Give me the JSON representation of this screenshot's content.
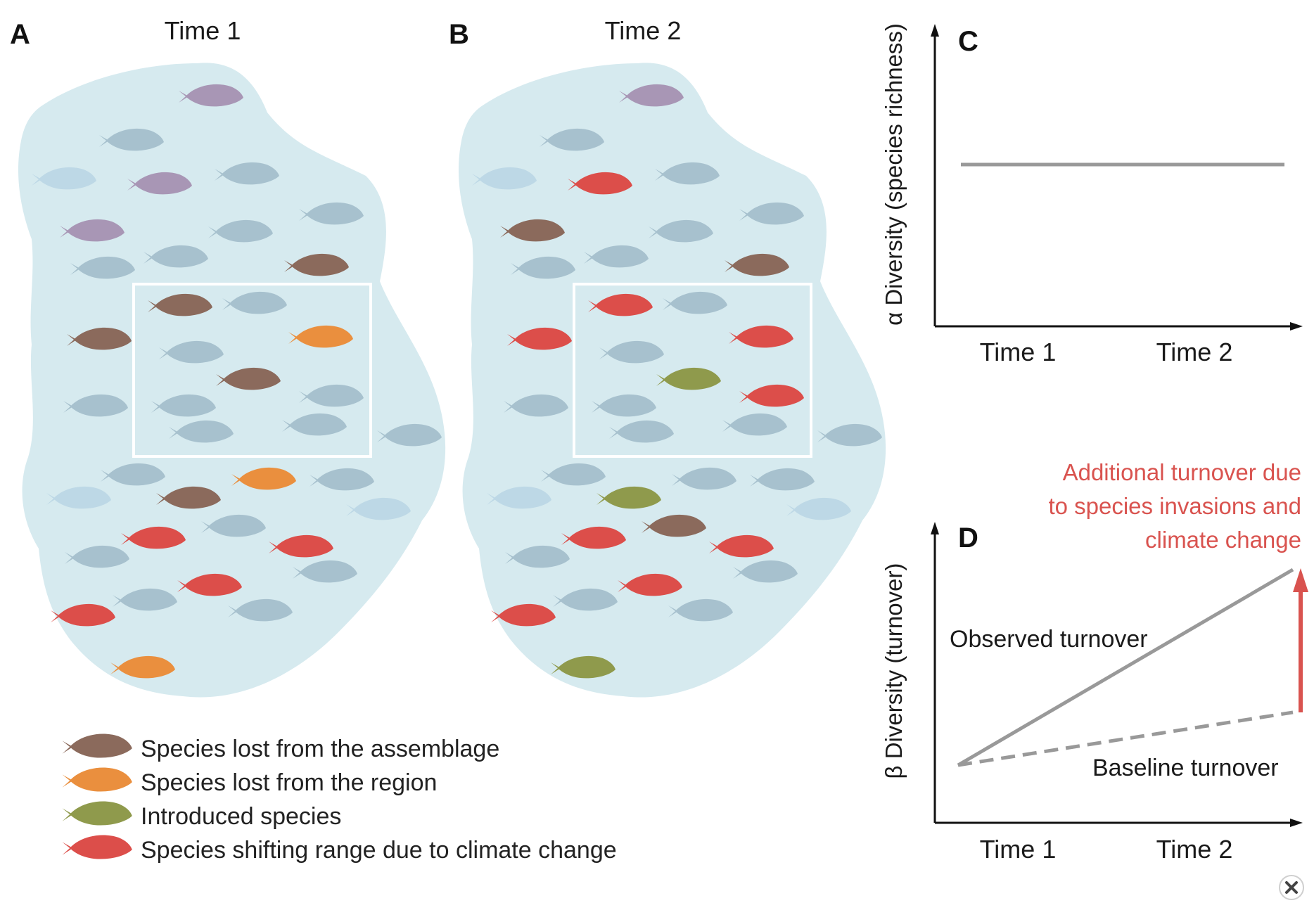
{
  "panels": {
    "a": {
      "letter": "A",
      "title": "Time 1"
    },
    "b": {
      "letter": "B",
      "title": "Time 2"
    },
    "c": {
      "letter": "C",
      "ylabel": "α Diversity (species richness)",
      "xticks": [
        "Time 1",
        "Time 2"
      ]
    },
    "d": {
      "letter": "D",
      "ylabel": "β Diversity (turnover)",
      "xticks": [
        "Time 1",
        "Time 2"
      ],
      "observed_label": "Observed turnover",
      "baseline_label": "Baseline turnover",
      "annotation": [
        "Additional turnover due",
        "to species invasions and",
        "climate change"
      ]
    }
  },
  "legend": [
    {
      "label": "Species lost from the assemblage",
      "color": "#8b6a5c"
    },
    {
      "label": "Species lost from the region",
      "color": "#ea8f3e"
    },
    {
      "label": "Introduced species",
      "color": "#8f9a4c"
    },
    {
      "label": "Species shifting range due to climate change",
      "color": "#dc4e4a"
    }
  ],
  "colors": {
    "water": "#d6eaef",
    "fish_default": "#a7c1ce",
    "fish_light": "#bdd8e6",
    "fish_purple": "#a896b5",
    "lost_assemblage": "#8b6a5c",
    "lost_region": "#ea8f3e",
    "introduced": "#8f9a4c",
    "climate": "#dc4e4a",
    "line_gray": "#999999",
    "annotation_red": "#d9534f"
  },
  "chart_data": [
    {
      "type": "line",
      "title": "",
      "ylabel": "α Diversity (species richness)",
      "categories": [
        "Time 1",
        "Time 2"
      ],
      "series": [
        {
          "values": [
            1,
            1
          ]
        }
      ]
    },
    {
      "type": "line",
      "title": "",
      "ylabel": "β Diversity (turnover)",
      "categories": [
        "Time 1",
        "Time 2"
      ],
      "series": [
        {
          "name": "Observed turnover",
          "values": [
            0,
            1
          ]
        },
        {
          "name": "Baseline turnover",
          "values": [
            0,
            0.27
          ]
        }
      ]
    }
  ],
  "icons": {
    "close": "close-icon"
  }
}
